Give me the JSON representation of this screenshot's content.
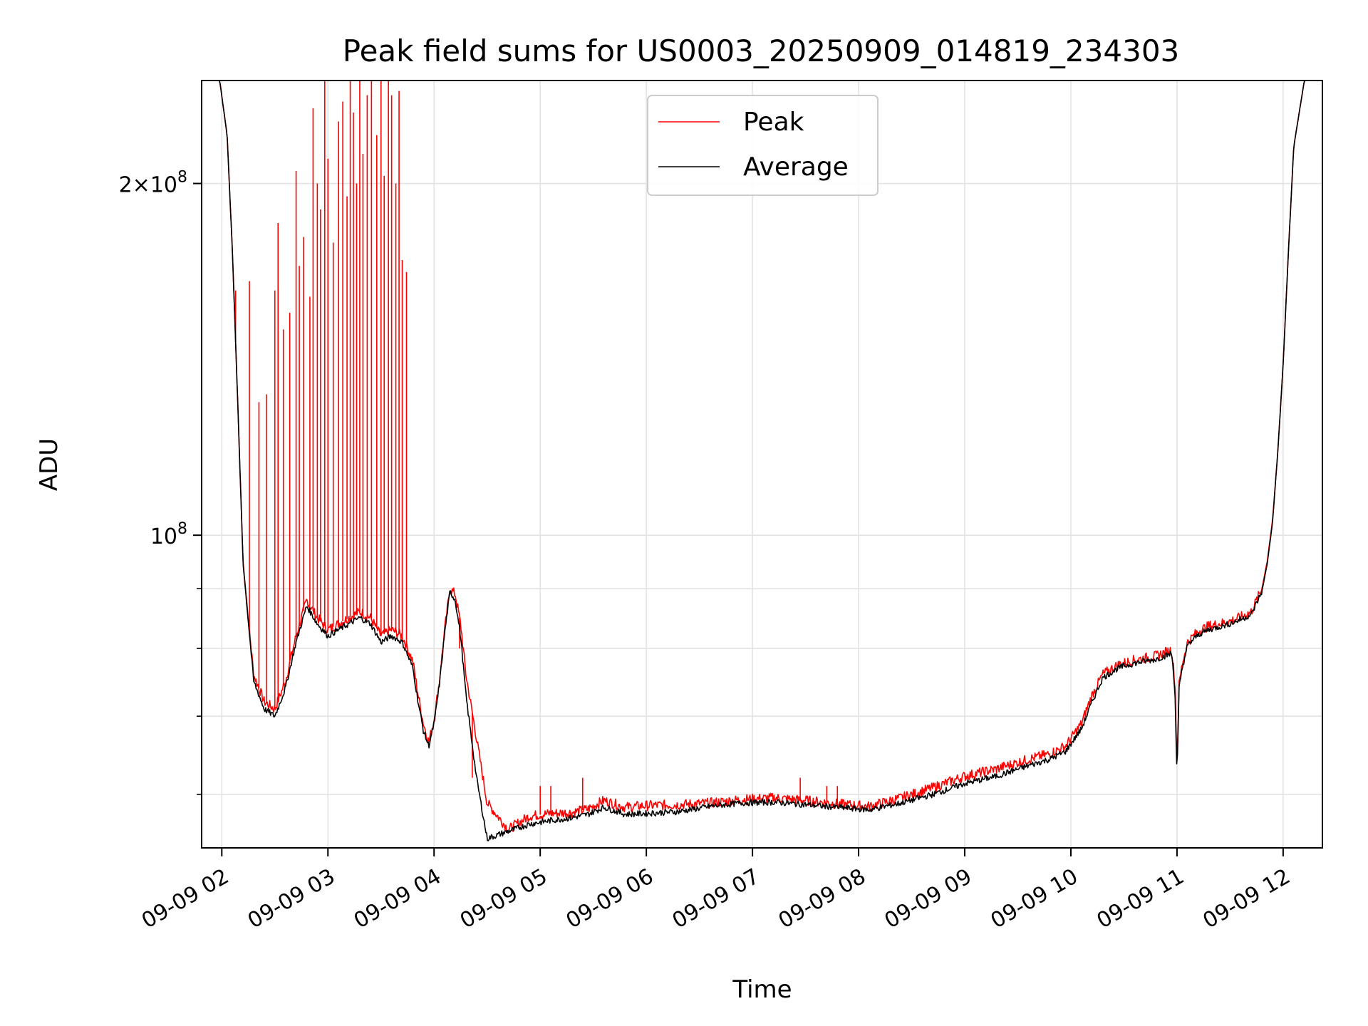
{
  "chart_data": {
    "type": "line",
    "title": "Peak field sums for US0003_20250909_014819_234303",
    "xlabel": "Time",
    "ylabel": "ADU",
    "x_ticks": [
      "09-09 02",
      "09-09 03",
      "09-09 04",
      "09-09 05",
      "09-09 06",
      "09-09 07",
      "09-09 08",
      "09-09 09",
      "09-09 10",
      "09-09 11",
      "09-09 12"
    ],
    "x_tick_values": [
      2,
      3,
      4,
      5,
      6,
      7,
      8,
      9,
      10,
      11,
      12
    ],
    "xlim": [
      1.81,
      12.37
    ],
    "y_scale": "log",
    "ylim": [
      54000000,
      245000000
    ],
    "y_major_ticks": [
      {
        "value": 200000000,
        "mantissa": "2",
        "times": "×",
        "base": "10",
        "exp": "8"
      },
      {
        "value": 100000000,
        "mantissa": "",
        "times": "",
        "base": "10",
        "exp": "8"
      }
    ],
    "y_minor_ticks": [
      60000000,
      70000000,
      80000000,
      90000000
    ],
    "grid": true,
    "legend_position": "top-center",
    "series": [
      {
        "name": "Peak",
        "color": "#ff0000",
        "x": [
          1.82,
          1.9,
          1.98,
          2.05,
          2.1,
          2.15,
          2.2,
          2.3,
          2.4,
          2.5,
          2.6,
          2.7,
          2.8,
          2.9,
          3.0,
          3.1,
          3.2,
          3.3,
          3.4,
          3.5,
          3.6,
          3.7,
          3.8,
          3.85,
          3.9,
          3.95,
          4.0,
          4.05,
          4.1,
          4.15,
          4.2,
          4.25,
          4.3,
          4.4,
          4.5,
          4.7,
          4.9,
          5.1,
          5.3,
          5.45,
          5.6,
          5.8,
          6.0,
          6.3,
          6.6,
          6.9,
          7.2,
          7.5,
          7.8,
          8.1,
          8.4,
          8.7,
          9.0,
          9.3,
          9.6,
          9.8,
          9.95,
          10.1,
          10.2,
          10.3,
          10.45,
          10.6,
          10.8,
          10.95,
          10.98,
          11.0,
          11.02,
          11.05,
          11.1,
          11.2,
          11.3,
          11.5,
          11.6,
          11.7,
          11.8,
          11.85,
          11.9,
          11.95,
          12.0,
          12.05,
          12.1,
          12.2,
          12.3,
          12.37
        ],
        "y": [
          245000000,
          245000000,
          245000000,
          220000000,
          175000000,
          130000000,
          95000000,
          76000000,
          72000000,
          71000000,
          75000000,
          82000000,
          88000000,
          85000000,
          83000000,
          84000000,
          85000000,
          86000000,
          85000000,
          82000000,
          83000000,
          82000000,
          78000000,
          73000000,
          69000000,
          66500000,
          69500000,
          75000000,
          83000000,
          90000000,
          89000000,
          84000000,
          76000000,
          67000000,
          59000000,
          56000000,
          57500000,
          57800000,
          57900000,
          58300000,
          59300000,
          58500000,
          58700000,
          58800000,
          59000000,
          59400000,
          59600000,
          59300000,
          58900000,
          58600000,
          59600000,
          60800000,
          62200000,
          63100000,
          64300000,
          65000000,
          66000000,
          69000000,
          73000000,
          76000000,
          77500000,
          78200000,
          78800000,
          79800000,
          75000000,
          64000000,
          74500000,
          77700000,
          81000000,
          82800000,
          83600000,
          84400000,
          85100000,
          86000000,
          90000000,
          95000000,
          103000000,
          118000000,
          140000000,
          175000000,
          215000000,
          245000000,
          245000000,
          245000000
        ]
      },
      {
        "name": "Average",
        "color": "#000000",
        "x": [
          1.82,
          1.9,
          1.98,
          2.05,
          2.1,
          2.15,
          2.2,
          2.3,
          2.4,
          2.5,
          2.6,
          2.7,
          2.8,
          2.9,
          3.0,
          3.1,
          3.2,
          3.3,
          3.4,
          3.5,
          3.6,
          3.7,
          3.8,
          3.85,
          3.9,
          3.95,
          4.0,
          4.05,
          4.1,
          4.15,
          4.2,
          4.25,
          4.3,
          4.4,
          4.5,
          4.7,
          4.9,
          5.1,
          5.3,
          5.45,
          5.6,
          5.8,
          6.0,
          6.3,
          6.6,
          6.9,
          7.2,
          7.5,
          7.8,
          8.1,
          8.4,
          8.7,
          9.0,
          9.3,
          9.6,
          9.8,
          9.95,
          10.1,
          10.2,
          10.3,
          10.45,
          10.6,
          10.8,
          10.95,
          10.98,
          11.0,
          11.02,
          11.05,
          11.1,
          11.2,
          11.3,
          11.5,
          11.6,
          11.7,
          11.8,
          11.85,
          11.9,
          11.95,
          12.0,
          12.05,
          12.1,
          12.2,
          12.3,
          12.37
        ],
        "y": [
          245000000,
          245000000,
          245000000,
          220000000,
          175000000,
          130000000,
          95000000,
          75000000,
          71000000,
          70000000,
          74000000,
          81000000,
          87000000,
          84000000,
          82000000,
          83000000,
          84000000,
          85000000,
          84000000,
          81000000,
          82000000,
          81000000,
          77000000,
          72000000,
          68000000,
          66000000,
          69000000,
          74500000,
          82500000,
          89500000,
          88000000,
          82000000,
          73000000,
          62000000,
          55000000,
          55800000,
          56600000,
          57000000,
          57300000,
          57700000,
          58500000,
          57700000,
          57800000,
          58000000,
          58600000,
          59000000,
          59100000,
          58800000,
          58500000,
          58200000,
          59000000,
          60000000,
          61300000,
          62200000,
          63500000,
          64300000,
          65300000,
          68300000,
          72000000,
          75500000,
          77000000,
          77700000,
          78300000,
          79200000,
          74000000,
          62000000,
          74000000,
          77000000,
          80500000,
          82200000,
          83000000,
          84000000,
          84700000,
          85500000,
          89500000,
          94500000,
          102500000,
          118000000,
          140000000,
          175000000,
          215000000,
          245000000,
          245000000,
          245000000
        ]
      }
    ],
    "peak_spikes": {
      "x": [
        2.13,
        2.26,
        2.35,
        2.42,
        2.5,
        2.53,
        2.58,
        2.64,
        2.7,
        2.73,
        2.77,
        2.83,
        2.86,
        2.9,
        2.93,
        2.97,
        3.0,
        3.05,
        3.1,
        3.14,
        3.18,
        3.21,
        3.24,
        3.27,
        3.3,
        3.33,
        3.37,
        3.41,
        3.46,
        3.5,
        3.53,
        3.57,
        3.6,
        3.64,
        3.67,
        3.7,
        3.74,
        4.24,
        4.36,
        5.0,
        5.1,
        5.4,
        7.45,
        7.7,
        7.8
      ],
      "y": [
        162000000,
        165000000,
        130000000,
        132000000,
        162000000,
        185000000,
        150000000,
        155000000,
        205000000,
        170000000,
        180000000,
        160000000,
        232000000,
        200000000,
        190000000,
        245000000,
        210000000,
        178000000,
        226000000,
        235000000,
        195000000,
        245000000,
        230000000,
        200000000,
        245000000,
        212000000,
        238000000,
        245000000,
        220000000,
        245000000,
        203000000,
        245000000,
        238000000,
        200000000,
        240000000,
        172000000,
        168000000,
        80000000,
        62000000,
        61000000,
        61000000,
        62000000,
        62000000,
        61000000,
        61000000
      ]
    },
    "legend_entries": [
      "Peak",
      "Average"
    ]
  }
}
